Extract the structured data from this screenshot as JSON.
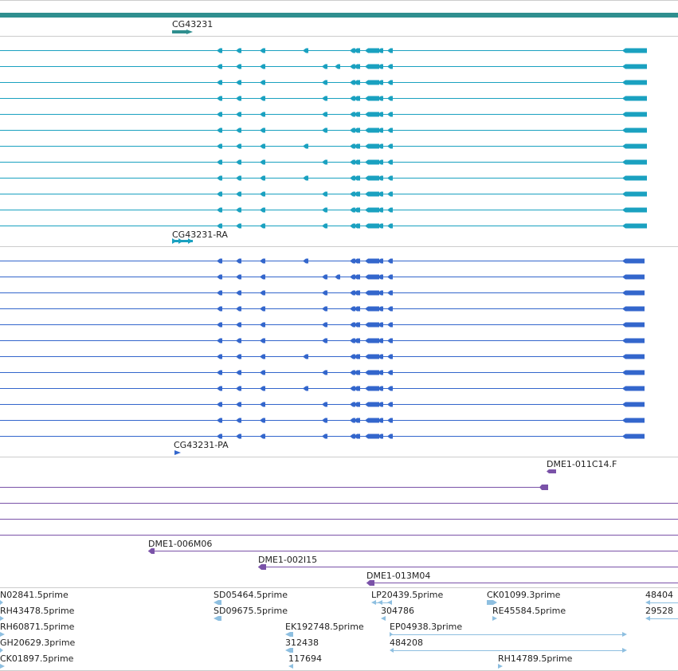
{
  "colors": {
    "gene": "#2f8f8f",
    "transcript_rna": "#1aa1c0",
    "transcript_protein": "#3366cc",
    "bac": "#7a52a8",
    "est": "#8ebfe0",
    "divider": "#cccccc",
    "label": "#222222"
  },
  "tracks": {
    "gene": {
      "label": "CG43231",
      "icon": "gene-arrow"
    },
    "mrna": {
      "label": "CG43231-RA",
      "row_count": 12,
      "intron_variants": [
        "A",
        "B",
        "C",
        "C",
        "C",
        "C",
        "A",
        "C",
        "A",
        "C",
        "C",
        "C"
      ]
    },
    "protein": {
      "label": "CG43231-PA",
      "row_count": 12,
      "intron_variants": [
        "A",
        "B",
        "C",
        "C",
        "C",
        "C",
        "A",
        "C",
        "A",
        "C",
        "C",
        "C"
      ]
    },
    "bac": {
      "clones": [
        "DME1-011C14.F",
        "DME1-006M06",
        "DME1-002I15",
        "DME1-013M04"
      ]
    },
    "est": {
      "labels": [
        "N02841.5prime",
        "SD05464.5prime",
        "LP20439.5prime",
        "CK01099.3prime",
        "48404",
        "RH43478.5prime",
        "SD09675.5prime",
        "304786",
        "RE45584.5prime",
        "29528",
        "RH60871.5prime",
        "EK192748.5prime",
        "EP04938.3prime",
        "GH20629.3prime",
        "312438",
        "484208",
        "CK01897.5prime",
        "117694",
        "RH14789.5prime"
      ]
    }
  }
}
